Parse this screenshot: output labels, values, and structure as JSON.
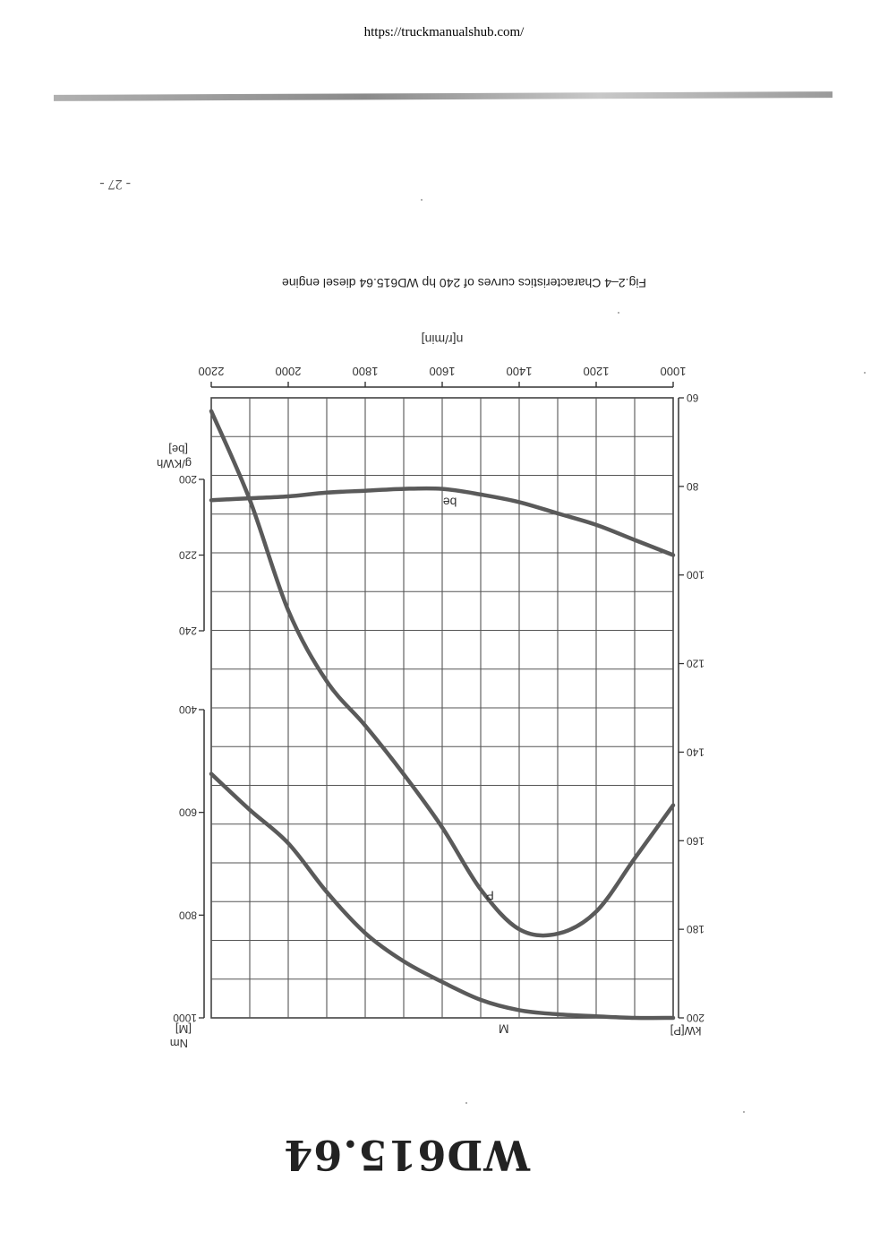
{
  "header": {
    "url": "https://truckmanualshub.com/"
  },
  "page": {
    "number": "- 27 -",
    "caption": "Fig.2–4  Characteristics curves of 240 hp WD615.64 diesel engine",
    "model_title": "WD615.64"
  },
  "chart_data": {
    "type": "line",
    "xlabel": "n[r/min]",
    "xlim": [
      1000,
      2200
    ],
    "x_ticks": [
      "1000",
      "1200",
      "1400",
      "1600",
      "1800",
      "2000",
      "2200"
    ],
    "axes": {
      "power": {
        "label": "kW[P]",
        "range": [
          60,
          200
        ],
        "ticks": [
          "60",
          "80",
          "100",
          "120",
          "140",
          "160",
          "180",
          "200"
        ]
      },
      "torque": {
        "label_unit": "Nm",
        "label_symbol": "[M]",
        "range": [
          400,
          1000
        ],
        "ticks": [
          "400",
          "600",
          "800",
          "1000"
        ]
      },
      "consumption": {
        "label_unit": "g/KWh",
        "label_symbol": "[be]",
        "range": [
          200,
          240
        ],
        "ticks": [
          "200",
          "220",
          "240"
        ]
      }
    },
    "grid": true,
    "series": [
      {
        "name": "P",
        "axis": "power",
        "x": [
          1000,
          1100,
          1200,
          1300,
          1400,
          1500,
          1600,
          1700,
          1800,
          1900,
          2000,
          2100,
          2200
        ],
        "values": [
          152,
          164,
          176,
          181,
          180,
          171,
          157,
          145,
          134,
          124,
          108,
          83,
          63
        ]
      },
      {
        "name": "M",
        "axis": "torque",
        "x": [
          1000,
          1100,
          1200,
          1300,
          1400,
          1500,
          1600,
          1700,
          1800,
          1900,
          2000,
          2100,
          2200
        ],
        "values": [
          1000,
          1000,
          997,
          993,
          985,
          965,
          930,
          890,
          835,
          755,
          660,
          595,
          525
        ]
      },
      {
        "name": "be",
        "axis": "consumption",
        "x": [
          1000,
          1100,
          1200,
          1300,
          1400,
          1500,
          1600,
          1700,
          1800,
          1900,
          2000,
          2100,
          2200
        ],
        "values": [
          220,
          216,
          212,
          209,
          206,
          204,
          202.5,
          202.5,
          203,
          203.5,
          204.5,
          205,
          205.5
        ]
      }
    ]
  }
}
